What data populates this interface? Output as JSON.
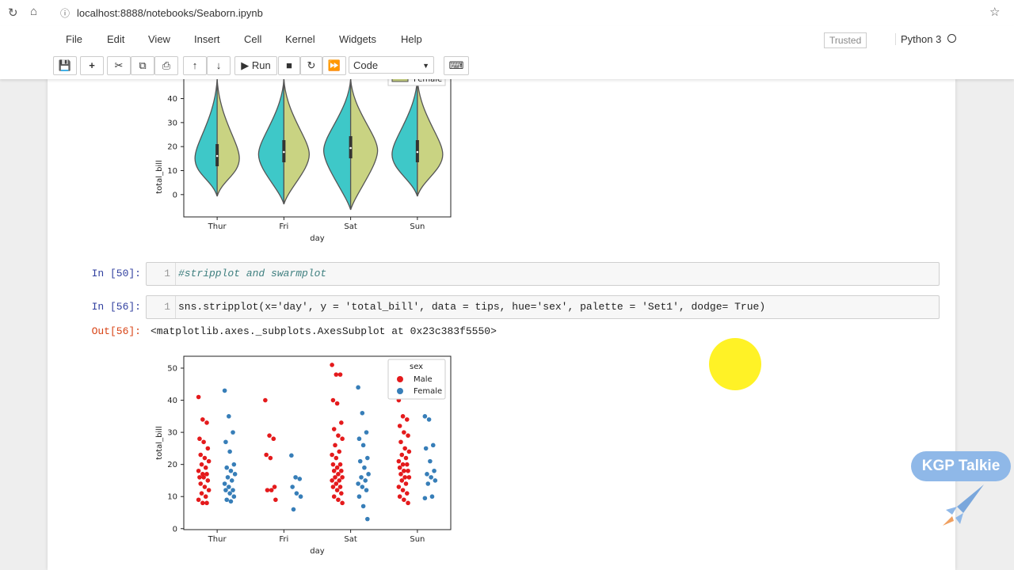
{
  "browser": {
    "url": "localhost:8888/notebooks/Seaborn.ipynb"
  },
  "menu": [
    "File",
    "Edit",
    "View",
    "Insert",
    "Cell",
    "Kernel",
    "Widgets",
    "Help"
  ],
  "status": {
    "trusted": "Trusted",
    "kernel": "Python 3"
  },
  "toolbar": {
    "run": "Run",
    "cell_type": "Code"
  },
  "cells": [
    {
      "prompt": "In [50]:",
      "line": "1",
      "code": "#stripplot and swarmplot"
    },
    {
      "prompt": "In [56]:",
      "line": "1",
      "code": "sns.stripplot(x='day', y = 'total_bill', data = tips, hue='sex', palette = 'Set1', dodge= True)"
    }
  ],
  "output": {
    "prompt": "Out[56]:",
    "text": "<matplotlib.axes._subplots.AxesSubplot at 0x23c383f5550>"
  },
  "watermark": "KGP Talkie",
  "chart_data": [
    {
      "type": "violin",
      "xlabel": "day",
      "ylabel": "total_bill",
      "categories": [
        "Thur",
        "Fri",
        "Sat",
        "Sun"
      ],
      "ylim": [
        -9.3,
        57
      ],
      "yticks": [
        0,
        10,
        20,
        30,
        40
      ],
      "series": [
        {
          "color": "#3ec8c8"
        },
        {
          "name": "Female",
          "color": "#c9d382"
        }
      ]
    },
    {
      "type": "strip",
      "xlabel": "day",
      "ylabel": "total_bill",
      "legend_title": "sex",
      "legend": "upper right",
      "categories": [
        "Thur",
        "Fri",
        "Sat",
        "Sun"
      ],
      "ylim": [
        -0.3,
        53.7
      ],
      "yticks": [
        0,
        10,
        20,
        30,
        40,
        50
      ],
      "series": [
        {
          "name": "Male",
          "color": "#e41a1c",
          "values": [
            [
              41,
              34,
              33,
              28,
              27,
              25,
              23,
              22,
              21,
              20,
              19,
              18,
              17,
              17,
              16,
              16,
              15,
              14,
              13,
              12,
              11,
              10,
              9,
              8,
              8
            ],
            [
              40,
              29,
              28,
              23,
              22,
              13,
              12,
              12,
              9
            ],
            [
              51,
              48,
              48,
              40,
              39,
              33,
              31,
              29,
              28,
              26,
              24,
              23,
              22,
              20,
              20,
              19,
              18,
              18,
              17,
              16,
              16,
              15,
              15,
              14,
              13,
              13,
              12,
              11,
              10,
              9,
              8
            ],
            [
              40,
              35,
              34,
              32,
              30,
              29,
              27,
              25,
              24,
              23,
              22,
              21,
              20,
              20,
              19,
              18,
              18,
              17,
              16,
              16,
              15,
              14,
              13,
              12,
              11,
              10,
              9,
              8
            ]
          ]
        },
        {
          "name": "Female",
          "color": "#377eb8",
          "values": [
            [
              43,
              35,
              30,
              27,
              24,
              20,
              19,
              18,
              17,
              16,
              15,
              14,
              13,
              12,
              12,
              11,
              10,
              9,
              8.5
            ],
            [
              22.8,
              16,
              15.5,
              13,
              11,
              10,
              6
            ],
            [
              44,
              36,
              30,
              28,
              26,
              22,
              21,
              19,
              17,
              16,
              15,
              14,
              13,
              12,
              10,
              7,
              3
            ],
            [
              35,
              34,
              26,
              25,
              21,
              18,
              17,
              16,
              15,
              14,
              10,
              9.5
            ]
          ]
        }
      ]
    }
  ]
}
